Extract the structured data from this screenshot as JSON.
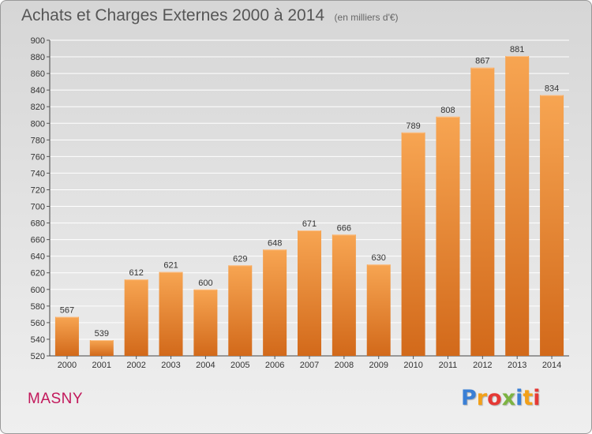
{
  "header": {
    "title": "Achats et Charges Externes 2000 à 2014",
    "subtitle": "(en milliers d'€)"
  },
  "footer": {
    "town": "MASNY",
    "logo": {
      "text": "Proxiti",
      "colors": [
        "#3a7fd5",
        "#f2a019",
        "#e53935",
        "#7cb342",
        "#3a7fd5",
        "#f2a019",
        "#e53935"
      ]
    }
  },
  "colors": {
    "bar_top": "#f7a552",
    "bar_bottom": "#d2691a",
    "grid": "#ffffff",
    "axis_text": "#333333",
    "town": "#c2185b"
  },
  "chart_data": {
    "type": "bar",
    "title": "Achats et Charges Externes 2000 à 2014",
    "subtitle": "(en milliers d'€)",
    "categories": [
      "2000",
      "2001",
      "2002",
      "2003",
      "2004",
      "2005",
      "2006",
      "2007",
      "2008",
      "2009",
      "2010",
      "2011",
      "2012",
      "2013",
      "2014"
    ],
    "values": [
      567,
      539,
      612,
      621,
      600,
      629,
      648,
      671,
      666,
      630,
      789,
      808,
      867,
      881,
      834
    ],
    "ylim": [
      520,
      900
    ],
    "ytick_step": 20,
    "grid": true,
    "data_labels": true
  }
}
